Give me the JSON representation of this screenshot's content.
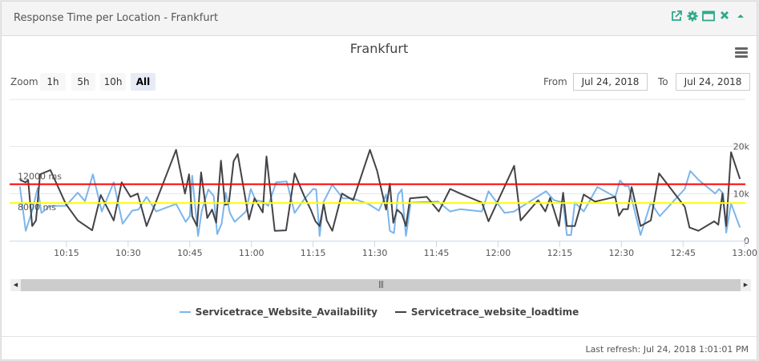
{
  "widget": {
    "title": "Response Time per Location - Frankfurt",
    "icons": [
      "external-link-icon",
      "gear-icon",
      "maximize-window-icon",
      "close-icon",
      "collapse-caret-icon"
    ],
    "accent_color": "#2ea98b"
  },
  "toolbar": {
    "zoom_label": "Zoom",
    "zoom_buttons": [
      "1h",
      "5h",
      "10h",
      "All"
    ],
    "zoom_selected": "All",
    "from_label": "From",
    "from_value": "Jul 24, 2018",
    "to_label": "To",
    "to_value": "Jul 24, 2018"
  },
  "chart_data": {
    "type": "line",
    "title": "Frankfurt",
    "xlabel": "",
    "ylabel": "",
    "x_range": [
      "10:01:10",
      "13:00:10"
    ],
    "ylim": [
      0,
      30000
    ],
    "grid": true,
    "legend_position": "bottom",
    "x_ticks": [
      "10:15",
      "10:30",
      "10:45",
      "11:00",
      "11:15",
      "11:30",
      "11:45",
      "12:00",
      "12:15",
      "12:30",
      "12:45",
      "13:00"
    ],
    "y_ticks": [
      {
        "value": 0,
        "label": "0"
      },
      {
        "value": 10000,
        "label": "10k"
      },
      {
        "value": 20000,
        "label": "20k"
      }
    ],
    "plot_lines": [
      {
        "value": 12000,
        "label": "12000 ms",
        "color": "#ff0000"
      },
      {
        "value": 8000,
        "label": "8000 ms",
        "color": "#ffff00"
      }
    ],
    "series": [
      {
        "name": "Servicetrace_Website_Availability",
        "color": "#7cb5ec",
        "points": [
          [
            "10:03:40",
            11500
          ],
          [
            "10:05:05",
            2100
          ],
          [
            "10:06:40",
            6400
          ],
          [
            "10:08:00",
            11200
          ],
          [
            "10:08:55",
            5900
          ],
          [
            "10:11:05",
            7400
          ],
          [
            "10:14:50",
            7400
          ],
          [
            "10:17:45",
            10200
          ],
          [
            "10:19:30",
            8400
          ],
          [
            "10:21:25",
            14100
          ],
          [
            "10:23:35",
            6200
          ],
          [
            "10:26:30",
            12400
          ],
          [
            "10:28:40",
            3600
          ],
          [
            "10:31:00",
            6400
          ],
          [
            "10:32:30",
            6600
          ],
          [
            "10:34:30",
            9300
          ],
          [
            "10:36:50",
            6200
          ],
          [
            "10:41:40",
            7800
          ],
          [
            "10:44:00",
            4000
          ],
          [
            "10:45:00",
            5200
          ],
          [
            "10:45:35",
            13800
          ],
          [
            "10:47:00",
            1000
          ],
          [
            "10:47:55",
            6400
          ],
          [
            "10:49:30",
            10900
          ],
          [
            "10:50:50",
            9500
          ],
          [
            "10:51:40",
            1400
          ],
          [
            "10:52:45",
            3600
          ],
          [
            "10:53:45",
            10200
          ],
          [
            "10:54:45",
            5900
          ],
          [
            "10:55:55",
            4000
          ],
          [
            "10:58:40",
            6200
          ],
          [
            "10:59:50",
            11000
          ],
          [
            "11:01:00",
            8600
          ],
          [
            "11:02:45",
            8300
          ],
          [
            "11:04:05",
            7400
          ],
          [
            "11:06:00",
            12400
          ],
          [
            "11:08:35",
            12600
          ],
          [
            "11:10:30",
            5900
          ],
          [
            "11:12:40",
            8600
          ],
          [
            "11:15:00",
            11000
          ],
          [
            "11:15:45",
            10900
          ],
          [
            "11:16:35",
            1000
          ],
          [
            "11:17:35",
            8300
          ],
          [
            "11:19:40",
            11900
          ],
          [
            "11:22:15",
            9000
          ],
          [
            "11:24:35",
            9000
          ],
          [
            "11:28:25",
            7800
          ],
          [
            "11:31:00",
            6400
          ],
          [
            "11:32:45",
            9800
          ],
          [
            "11:33:40",
            2100
          ],
          [
            "11:34:40",
            1600
          ],
          [
            "11:35:40",
            9800
          ],
          [
            "11:36:35",
            10900
          ],
          [
            "11:37:35",
            1000
          ],
          [
            "11:38:45",
            8100
          ],
          [
            "11:45:25",
            8300
          ],
          [
            "11:48:20",
            6200
          ],
          [
            "11:50:50",
            6700
          ],
          [
            "11:56:05",
            6200
          ],
          [
            "11:57:40",
            10500
          ],
          [
            "12:01:35",
            5900
          ],
          [
            "12:03:55",
            6200
          ],
          [
            "12:11:40",
            10500
          ],
          [
            "12:13:35",
            8600
          ],
          [
            "12:15:50",
            8100
          ],
          [
            "12:16:45",
            1200
          ],
          [
            "12:17:45",
            1200
          ],
          [
            "12:18:40",
            8100
          ],
          [
            "12:20:50",
            6200
          ],
          [
            "12:24:10",
            11400
          ],
          [
            "12:28:30",
            9300
          ],
          [
            "12:29:40",
            12800
          ],
          [
            "12:30:50",
            11600
          ],
          [
            "12:31:45",
            11600
          ],
          [
            "12:34:40",
            1200
          ],
          [
            "12:37:10",
            8100
          ],
          [
            "12:39:20",
            5200
          ],
          [
            "12:45:25",
            11000
          ],
          [
            "12:46:45",
            14800
          ],
          [
            "12:48:55",
            12800
          ],
          [
            "12:52:50",
            10000
          ],
          [
            "12:53:45",
            11000
          ],
          [
            "12:54:45",
            10000
          ],
          [
            "12:55:30",
            1700
          ],
          [
            "12:56:40",
            7900
          ],
          [
            "12:58:50",
            2800
          ]
        ]
      },
      {
        "name": "Servicetrace_website_loadtime",
        "color": "#434348",
        "points": [
          [
            "10:03:40",
            12900
          ],
          [
            "10:05:05",
            12400
          ],
          [
            "10:05:40",
            12900
          ],
          [
            "10:06:40",
            3100
          ],
          [
            "10:07:35",
            4300
          ],
          [
            "10:08:35",
            14100
          ],
          [
            "10:11:05",
            15000
          ],
          [
            "10:14:50",
            7800
          ],
          [
            "10:17:45",
            4300
          ],
          [
            "10:21:15",
            2200
          ],
          [
            "10:23:20",
            9700
          ],
          [
            "10:26:30",
            4300
          ],
          [
            "10:28:25",
            12400
          ],
          [
            "10:30:35",
            9300
          ],
          [
            "10:32:20",
            10000
          ],
          [
            "10:34:30",
            3100
          ],
          [
            "10:41:40",
            19300
          ],
          [
            "10:43:50",
            10000
          ],
          [
            "10:44:50",
            14100
          ],
          [
            "10:45:35",
            5200
          ],
          [
            "10:46:45",
            3100
          ],
          [
            "10:47:45",
            14500
          ],
          [
            "10:49:15",
            4800
          ],
          [
            "10:50:25",
            6600
          ],
          [
            "10:51:25",
            3800
          ],
          [
            "10:52:35",
            17000
          ],
          [
            "10:53:35",
            7600
          ],
          [
            "10:54:30",
            7900
          ],
          [
            "10:55:40",
            16900
          ],
          [
            "10:56:40",
            18400
          ],
          [
            "10:59:25",
            4500
          ],
          [
            "11:00:45",
            9000
          ],
          [
            "11:02:45",
            6000
          ],
          [
            "11:03:40",
            17900
          ],
          [
            "11:05:40",
            2100
          ],
          [
            "11:08:25",
            2200
          ],
          [
            "11:10:30",
            14300
          ],
          [
            "11:12:50",
            9500
          ],
          [
            "11:14:25",
            6600
          ],
          [
            "11:15:35",
            4100
          ],
          [
            "11:16:35",
            3100
          ],
          [
            "11:17:35",
            7800
          ],
          [
            "11:18:20",
            4300
          ],
          [
            "11:19:40",
            2100
          ],
          [
            "11:22:00",
            10000
          ],
          [
            "11:24:45",
            8600
          ],
          [
            "11:28:50",
            19300
          ],
          [
            "11:30:35",
            14800
          ],
          [
            "11:31:45",
            10300
          ],
          [
            "11:32:45",
            6600
          ],
          [
            "11:33:40",
            12100
          ],
          [
            "11:34:30",
            3800
          ],
          [
            "11:35:25",
            6600
          ],
          [
            "11:36:35",
            5700
          ],
          [
            "11:37:35",
            3100
          ],
          [
            "11:38:35",
            9000
          ],
          [
            "11:42:40",
            9300
          ],
          [
            "11:45:35",
            6200
          ],
          [
            "11:48:20",
            11000
          ],
          [
            "11:50:50",
            10000
          ],
          [
            "11:56:05",
            8100
          ],
          [
            "11:57:40",
            4100
          ],
          [
            "12:03:55",
            15900
          ],
          [
            "12:05:30",
            4300
          ],
          [
            "12:09:45",
            8600
          ],
          [
            "12:11:30",
            6200
          ],
          [
            "12:12:40",
            9100
          ],
          [
            "12:14:50",
            3100
          ],
          [
            "12:15:50",
            10200
          ],
          [
            "12:16:45",
            3100
          ],
          [
            "12:18:40",
            3100
          ],
          [
            "12:20:50",
            9800
          ],
          [
            "12:23:35",
            8300
          ],
          [
            "12:28:30",
            9300
          ],
          [
            "12:29:25",
            5300
          ],
          [
            "12:30:25",
            6700
          ],
          [
            "12:31:35",
            6700
          ],
          [
            "12:32:30",
            11400
          ],
          [
            "12:34:40",
            3100
          ],
          [
            "12:37:10",
            4300
          ],
          [
            "12:39:10",
            14300
          ],
          [
            "12:45:25",
            7200
          ],
          [
            "12:46:35",
            2800
          ],
          [
            "12:48:45",
            2100
          ],
          [
            "12:52:35",
            4100
          ],
          [
            "12:53:35",
            3400
          ],
          [
            "12:54:35",
            10000
          ],
          [
            "12:55:30",
            3100
          ],
          [
            "12:56:40",
            18800
          ],
          [
            "12:58:50",
            13100
          ]
        ]
      }
    ]
  },
  "footer": {
    "last_refresh": "Last refresh: Jul 24, 2018 1:01:01 PM"
  }
}
